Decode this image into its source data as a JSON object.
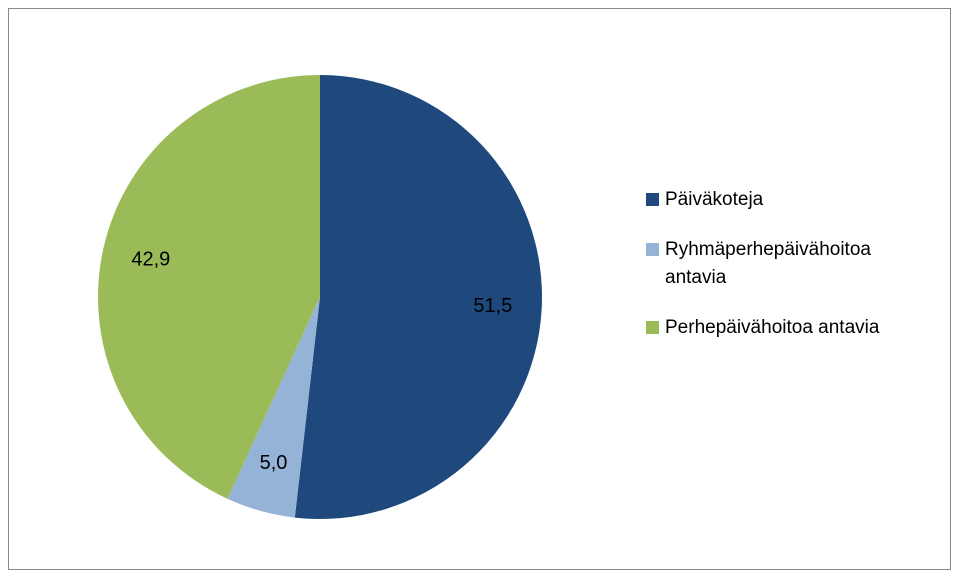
{
  "chart_data": {
    "type": "pie",
    "categories": [
      "Päiväkoteja",
      "Ryhmäperhepäivähoitoa antavia",
      "Perhepäivähoitoa antavia"
    ],
    "values": [
      51.5,
      5.0,
      42.9
    ],
    "value_labels": [
      "51,5",
      "5,0",
      "42,9"
    ],
    "colors": [
      "#1f497d",
      "#95b3d7",
      "#9bbb59"
    ],
    "legend": "right"
  }
}
